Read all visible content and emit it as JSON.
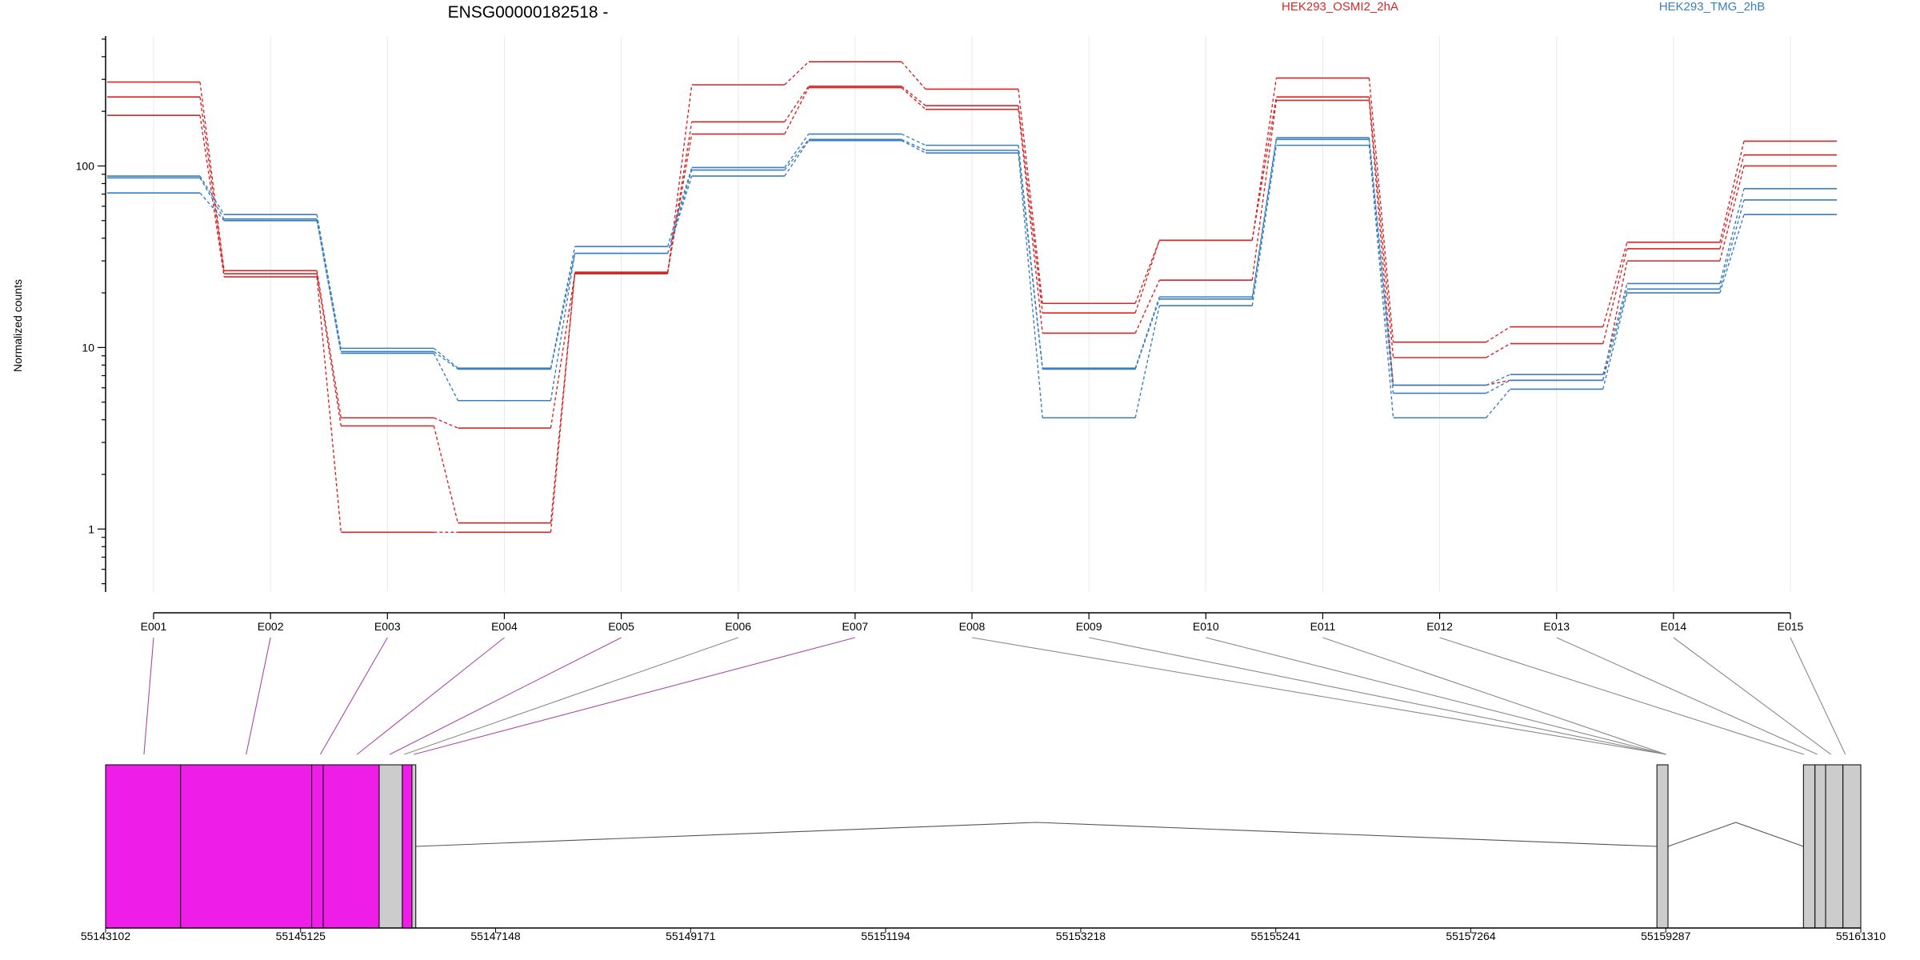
{
  "chart_data": {
    "type": "line",
    "title": "ENSG00000182518 -",
    "ylabel": "Normalized counts",
    "yscale": "log",
    "ylim": [
      0.45,
      520
    ],
    "ytick_values": [
      1,
      10,
      100
    ],
    "ytick_labels": [
      "1",
      "10",
      "100"
    ],
    "legend_position": "top",
    "legend": [
      {
        "label": "HEK293_OSMI2_2hA",
        "color": "#d62728"
      },
      {
        "label": "HEK293_TMG_2hB",
        "color": "#3a7fbf"
      }
    ],
    "categories": [
      "E001",
      "E002",
      "E003",
      "E004",
      "E005",
      "E006",
      "E007",
      "E008",
      "E009",
      "E010",
      "E011",
      "E012",
      "E013",
      "E014",
      "E015"
    ],
    "series": [
      {
        "group": "HEK293_OSMI2_2hA",
        "color": "#d62728",
        "values": [
          290,
          26.5,
          4.1,
          3.6,
          25.5,
          280,
          375,
          265,
          17.5,
          39,
          305,
          10.7,
          13,
          38,
          137
        ]
      },
      {
        "group": "HEK293_OSMI2_2hA",
        "color": "#d62728",
        "values": [
          240,
          25.5,
          3.7,
          1.08,
          25.8,
          175,
          275,
          215,
          15.5,
          39,
          240,
          8.8,
          10.5,
          35,
          115
        ]
      },
      {
        "group": "HEK293_OSMI2_2hA",
        "color": "#d62728",
        "values": [
          190,
          24.5,
          0.96,
          0.96,
          26,
          150,
          270,
          205,
          12,
          23.5,
          230,
          6.2,
          6.6,
          30,
          100
        ]
      },
      {
        "group": "HEK293_TMG_2hB",
        "color": "#3a7fbf",
        "values": [
          88,
          54,
          9.9,
          7.7,
          36,
          98,
          150,
          130,
          7.7,
          19,
          143,
          6.2,
          7.1,
          22.5,
          75
        ]
      },
      {
        "group": "HEK293_TMG_2hB",
        "color": "#3a7fbf",
        "values": [
          86,
          51,
          9.5,
          7.6,
          33,
          95,
          140,
          122,
          7.6,
          18.5,
          140,
          5.6,
          6.6,
          21,
          65
        ]
      },
      {
        "group": "HEK293_TMG_2hB",
        "color": "#3a7fbf",
        "values": [
          71,
          50,
          9.3,
          5.1,
          33,
          88,
          138,
          118,
          4.1,
          17,
          130,
          4.1,
          5.9,
          20,
          54
        ]
      }
    ],
    "gene_model": {
      "genomic_ticks": [
        "55143102",
        "55145125",
        "55147148",
        "55149171",
        "55151194",
        "55153218",
        "55155241",
        "55157264",
        "55159287",
        "55161310"
      ],
      "genomic_start": 55143102,
      "genomic_end": 55161310,
      "tested_color": "#ee1ee8",
      "untested_color": "#cccccc",
      "exons": [
        {
          "start": 55143102,
          "end": 55143880,
          "highlight": true
        },
        {
          "start": 55143880,
          "end": 55145240,
          "highlight": true
        },
        {
          "start": 55145240,
          "end": 55145360,
          "highlight": true
        },
        {
          "start": 55145360,
          "end": 55145940,
          "highlight": true
        },
        {
          "start": 55145940,
          "end": 55146180,
          "highlight": false
        },
        {
          "start": 55146180,
          "end": 55146280,
          "highlight": true
        },
        {
          "start": 55146280,
          "end": 55146320,
          "highlight": false
        },
        {
          "start": 55159195,
          "end": 55159310,
          "highlight": false
        },
        {
          "start": 55160715,
          "end": 55160835,
          "highlight": false
        },
        {
          "start": 55160835,
          "end": 55160945,
          "highlight": false
        },
        {
          "start": 55160945,
          "end": 55161125,
          "highlight": false
        },
        {
          "start": 55161125,
          "end": 55161310,
          "highlight": false
        }
      ],
      "introns": [
        {
          "start": 55146320,
          "end": 55159195
        },
        {
          "start": 55159310,
          "end": 55160715
        }
      ],
      "connector_targets": [
        55143500,
        55144560,
        55145330,
        55145710,
        55146050,
        55146200,
        55146300,
        55159290,
        55159290,
        55159290,
        55159290,
        55160720,
        55160860,
        55161000,
        55161150
      ],
      "connector_highlight": [
        true,
        true,
        true,
        true,
        true,
        false,
        true,
        false,
        false,
        false,
        false,
        false,
        false,
        false,
        false
      ]
    }
  }
}
